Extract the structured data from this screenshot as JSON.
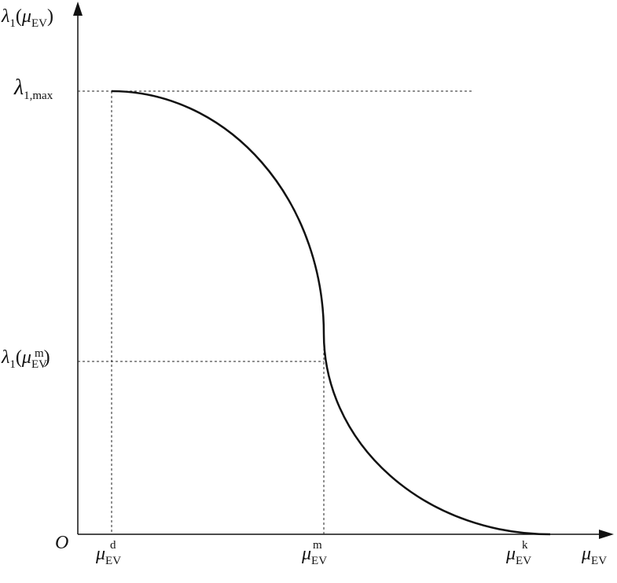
{
  "y_axis": {
    "label": [
      "λ",
      "1",
      "(",
      "μ",
      "EV",
      ")"
    ]
  },
  "y_labels": [
    {
      "parts": [
        "λ",
        "1,max"
      ]
    },
    {
      "parts": [
        "λ",
        "1",
        "(",
        "μ",
        "EV",
        "m",
        ")"
      ]
    }
  ],
  "origin": "O",
  "x_labels": [
    {
      "parts": [
        "μ",
        "EV",
        "d"
      ]
    },
    {
      "parts": [
        "μ",
        "EV",
        "m"
      ]
    },
    {
      "parts": [
        "μ",
        "EV",
        "k"
      ]
    }
  ],
  "x_axis": {
    "label": [
      "μ",
      "EV"
    ]
  }
}
